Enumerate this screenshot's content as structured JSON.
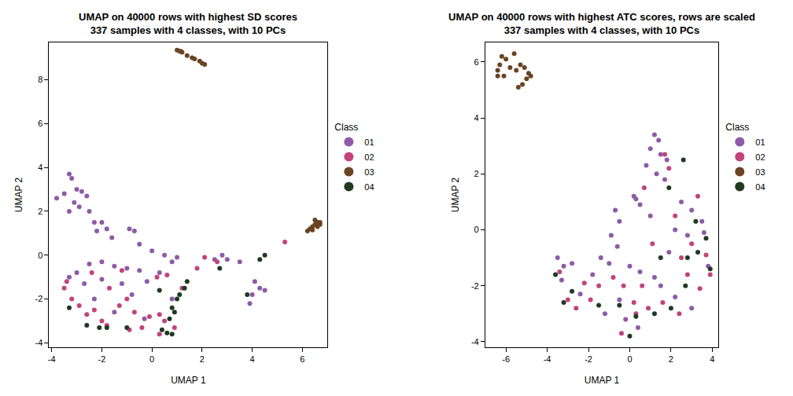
{
  "chart_data": [
    {
      "type": "scatter",
      "title": "UMAP on 40000 rows with highest SD scores\n337 samples with 4 classes, with 10 PCs",
      "x_label": "UMAP 1",
      "y_label": "UMAP 2",
      "xlim": [
        -4.1,
        7.0
      ],
      "ylim": [
        -4.2,
        9.7
      ],
      "xticks": [
        -4,
        -2,
        0,
        2,
        4,
        6
      ],
      "yticks": [
        -4,
        -2,
        0,
        2,
        4,
        6,
        8
      ],
      "legend": "right",
      "legend_title": "Class",
      "grid": false,
      "series": [
        {
          "name": "01",
          "color": "#8e5ba6",
          "x": [
            -3.8,
            -3.5,
            -3.3,
            -3.2,
            -3.0,
            -2.8,
            -2.6,
            -3.1,
            -3.3,
            -2.9,
            -2.5,
            -2.3,
            -2.0,
            -1.8,
            -1.6,
            -2.2,
            -0.9,
            -0.7,
            -0.5,
            0.0,
            0.5,
            -3.3,
            -3.0,
            -2.5,
            -2.0,
            -1.5,
            -1.0,
            -0.5,
            -2.7,
            -2.0,
            -1.2,
            -0.8,
            -0.2,
            0.3,
            0.8,
            1.0,
            2.5,
            2.8,
            3.0,
            3.5,
            4.0,
            4.3,
            4.5,
            3.9,
            4.1,
            -1.5,
            -0.3,
            0.8,
            -2.3
          ],
          "y": [
            2.6,
            2.8,
            3.7,
            3.5,
            3.0,
            2.9,
            2.7,
            2.4,
            2.0,
            2.2,
            2.0,
            1.5,
            1.5,
            1.2,
            0.8,
            1.1,
            1.2,
            1.1,
            0.5,
            0.2,
            0.0,
            -1.0,
            -0.8,
            -0.4,
            -0.3,
            -0.5,
            -0.6,
            -0.7,
            -1.3,
            -1.1,
            -1.3,
            -1.8,
            -1.2,
            -0.8,
            -0.3,
            -0.1,
            -0.2,
            0.0,
            -0.2,
            -0.3,
            -1.8,
            -1.5,
            -1.6,
            -2.2,
            -1.2,
            -2.6,
            -2.9,
            -2.0,
            -2.0
          ]
        },
        {
          "name": "02",
          "color": "#c2437a",
          "x": [
            -3.5,
            -3.2,
            -2.9,
            -2.6,
            -2.3,
            -2.0,
            -1.8,
            -1.3,
            -1.0,
            -0.7,
            -0.4,
            -0.1,
            0.3,
            0.5,
            0.6,
            0.2,
            -1.7,
            -2.4,
            -1.2,
            0.3,
            0.9,
            1.2,
            1.8,
            2.1,
            2.6,
            5.3,
            -0.9,
            -3.4
          ],
          "y": [
            -1.5,
            -2.0,
            -2.3,
            -2.7,
            -2.5,
            -3.0,
            -3.2,
            -2.3,
            -2.0,
            -2.6,
            -3.3,
            -2.8,
            -2.7,
            -3.0,
            -0.9,
            -1.0,
            -1.5,
            -0.8,
            -0.7,
            -3.6,
            -3.3,
            -1.5,
            -0.6,
            -0.1,
            -0.3,
            0.6,
            -3.4,
            -1.2
          ]
        },
        {
          "name": "03",
          "color": "#6b4423",
          "x": [
            1.0,
            1.1,
            1.15,
            1.2,
            1.4,
            1.6,
            1.7,
            1.9,
            2.0,
            2.1,
            6.2,
            6.3,
            6.4,
            6.5,
            6.6,
            6.7,
            6.5,
            6.4,
            6.6,
            6.7
          ],
          "y": [
            9.35,
            9.3,
            9.3,
            9.25,
            9.1,
            9.0,
            8.95,
            8.85,
            8.75,
            8.7,
            1.1,
            1.2,
            1.3,
            1.4,
            1.5,
            1.5,
            1.6,
            1.15,
            1.3,
            1.4
          ]
        },
        {
          "name": "04",
          "color": "#1f3a20",
          "x": [
            -3.3,
            -2.6,
            -2.1,
            -1.8,
            -1.0,
            0.4,
            0.6,
            0.8,
            0.7,
            0.8,
            0.9,
            1.0,
            1.3,
            1.4,
            1.1,
            0.3,
            4.3,
            4.5,
            3.8,
            2.7
          ],
          "y": [
            -2.4,
            -3.2,
            -3.3,
            -3.3,
            -3.3,
            -3.4,
            -3.55,
            -3.6,
            -2.9,
            -2.4,
            -2.6,
            -2.0,
            -1.5,
            -1.2,
            -1.8,
            -1.6,
            -0.2,
            0.0,
            -1.8,
            -0.6
          ]
        }
      ]
    },
    {
      "type": "scatter",
      "title": "UMAP on 40000 rows with highest ATC scores, rows are scaled\n337 samples with 4 classes, with 10 PCs",
      "x_label": "UMAP 1",
      "y_label": "UMAP 2",
      "xlim": [
        -7.0,
        4.3
      ],
      "ylim": [
        -4.2,
        6.7
      ],
      "xticks": [
        -6,
        -4,
        -2,
        0,
        2,
        4
      ],
      "yticks": [
        -4,
        -2,
        0,
        2,
        4,
        6
      ],
      "legend": "right",
      "legend_title": "Class",
      "grid": false,
      "series": [
        {
          "name": "01",
          "color": "#8e5ba6",
          "x": [
            1.2,
            1.4,
            1.0,
            1.5,
            1.8,
            0.8,
            1.3,
            1.7,
            0.2,
            0.5,
            0.3,
            -0.7,
            -0.5,
            -0.9,
            -0.6,
            1.0,
            2.5,
            3.0,
            3.5,
            2.2,
            2.8,
            3.6,
            -3.5,
            -3.2,
            -2.8,
            -3.3,
            -2.4,
            -1.8,
            -1.4,
            -1.0,
            0.0,
            0.5,
            1.2,
            1.5,
            2.2,
            3.0,
            -0.5,
            -0.2,
            0.4,
            3.8,
            1.9,
            -1.2
          ],
          "y": [
            3.4,
            3.2,
            2.9,
            2.7,
            2.5,
            2.3,
            2.0,
            1.8,
            1.2,
            0.9,
            1.1,
            0.7,
            0.3,
            -0.2,
            -0.6,
            0.5,
            1.0,
            0.7,
            0.3,
            0.0,
            -0.2,
            -0.1,
            -1.0,
            -1.3,
            -1.2,
            -1.8,
            -2.3,
            -1.6,
            -1.0,
            -1.2,
            -1.3,
            -1.5,
            -1.7,
            -2.0,
            -2.4,
            -2.8,
            -2.5,
            -3.2,
            -3.5,
            -1.3,
            -0.8,
            -3.0
          ]
        },
        {
          "name": "02",
          "color": "#c2437a",
          "x": [
            1.7,
            1.9,
            0.7,
            2.2,
            3.3,
            3.0,
            3.7,
            -3.4,
            -3.0,
            -2.6,
            -2.2,
            -1.9,
            -1.5,
            -0.8,
            -0.3,
            0.2,
            0.6,
            -0.4,
            0.3,
            0.9,
            1.6,
            2.4,
            2.8,
            3.4,
            3.9,
            1.1,
            2.5
          ],
          "y": [
            2.7,
            2.2,
            1.5,
            0.5,
            1.2,
            -0.5,
            -0.9,
            -1.5,
            -2.5,
            -2.8,
            -1.9,
            -2.5,
            -2.0,
            -1.7,
            -2.0,
            -2.6,
            -2.0,
            -3.7,
            -3.0,
            -2.8,
            -2.6,
            -3.0,
            -1.6,
            -2.1,
            -1.6,
            -0.5,
            -1.0
          ]
        },
        {
          "name": "03",
          "color": "#6b4423",
          "x": [
            -6.4,
            -6.3,
            -6.2,
            -6.0,
            -5.8,
            -5.6,
            -5.5,
            -5.3,
            -5.1,
            -5.4,
            -5.2,
            -5.0,
            -4.9,
            -4.8,
            -6.4,
            -6.1
          ],
          "y": [
            5.7,
            5.9,
            6.2,
            6.1,
            5.8,
            6.3,
            5.7,
            5.9,
            5.8,
            5.1,
            5.2,
            5.4,
            5.6,
            5.5,
            5.5,
            5.5
          ]
        },
        {
          "name": "04",
          "color": "#1f3a20",
          "x": [
            2.6,
            1.9,
            3.2,
            3.7,
            3.3,
            3.9,
            2.8,
            -3.6,
            -2.8,
            -1.5,
            -0.5,
            0.0,
            0.3,
            1.2,
            2.0,
            2.7,
            1.5,
            -3.2
          ],
          "y": [
            2.5,
            1.5,
            0.3,
            -0.3,
            -0.8,
            -1.4,
            -1.0,
            -1.6,
            -2.2,
            -2.7,
            -2.7,
            -3.8,
            -3.1,
            -3.0,
            -2.8,
            -2.0,
            -1.0,
            -2.6
          ]
        }
      ]
    }
  ]
}
